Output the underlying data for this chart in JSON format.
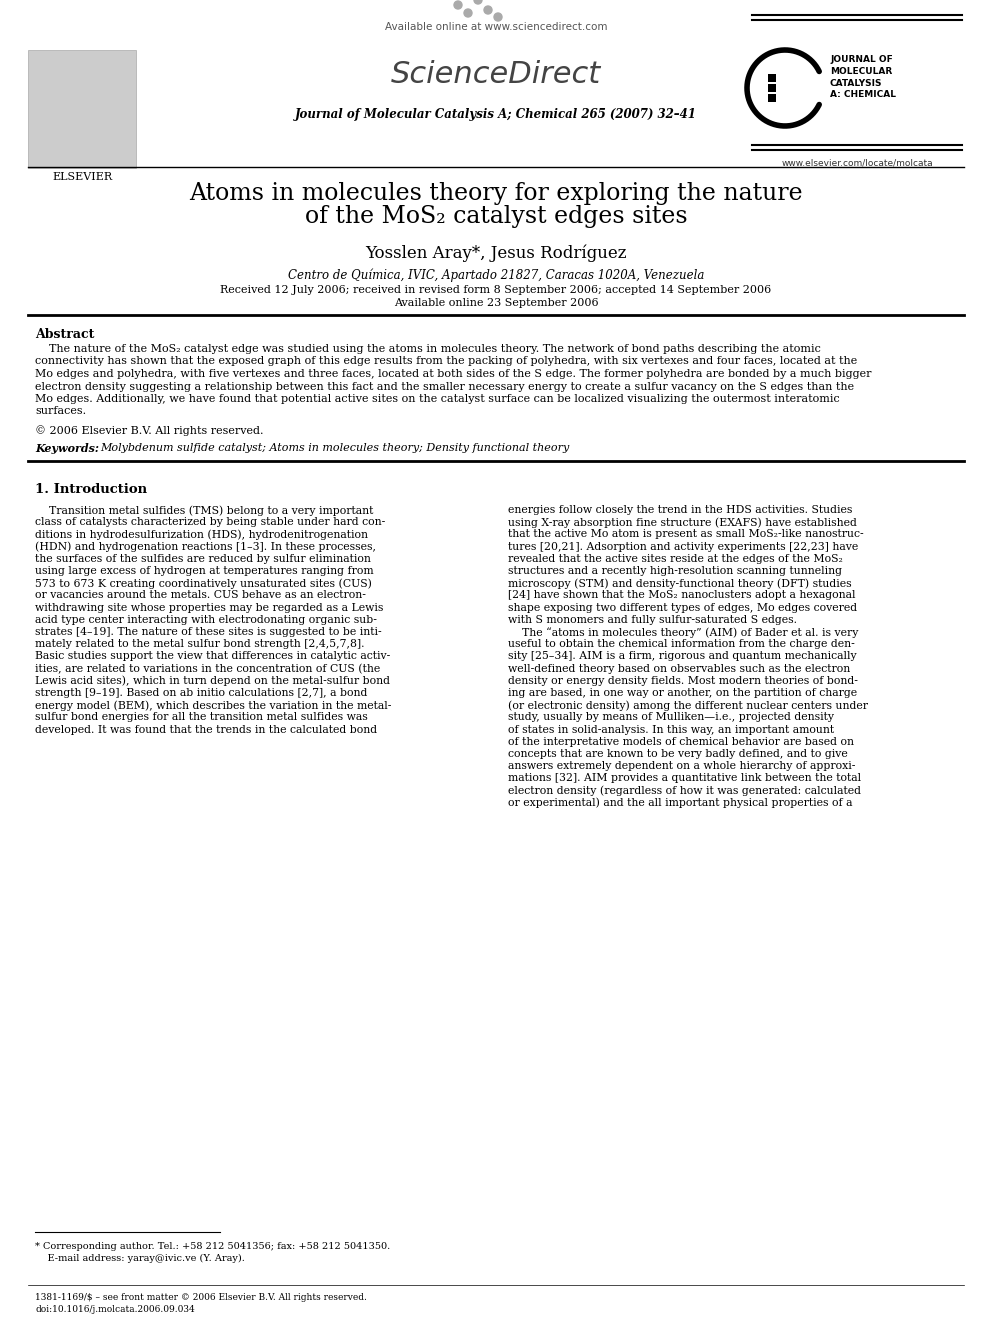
{
  "bg_color": "#ffffff",
  "title_line1": "Atoms in molecules theory for exploring the nature",
  "title_line2_pre": "of the MoS",
  "title_line2_sub": "2",
  "title_line2_post": " catalyst edges sites",
  "authors": "Yosslen Aray*, Jesus Rodríguez",
  "affiliation": "Centro de Química, IVIC, Apartado 21827, Caracas 1020A, Venezuela",
  "received": "Received 12 July 2006; received in revised form 8 September 2006; accepted 14 September 2006",
  "available_online": "Available online 23 September 2006",
  "journal_header": "Journal of Molecular Catalysis A; Chemical 265 (2007) 32–41",
  "available_online_header": "Available online at www.sciencedirect.com",
  "journal_logo_text": "JOURNAL OF\nMOLECULAR\nCATALYSIS\nA: CHEMICAL",
  "elsevier_text": "ELSEVIER",
  "website": "www.elsevier.com/locate/molcata",
  "abstract_title": "Abstract",
  "abstract_lines": [
    "    The nature of the MoS₂ catalyst edge was studied using the atoms in molecules theory. The network of bond paths describing the atomic",
    "connectivity has shown that the exposed graph of this edge results from the packing of polyhedra, with six vertexes and four faces, located at the",
    "Mo edges and polyhedra, with five vertexes and three faces, located at both sides of the S edge. The former polyhedra are bonded by a much bigger",
    "electron density suggesting a relationship between this fact and the smaller necessary energy to create a sulfur vacancy on the S edges than the",
    "Mo edges. Additionally, we have found that potential active sites on the catalyst surface can be localized visualizing the outermost interatomic",
    "surfaces."
  ],
  "copyright": "© 2006 Elsevier B.V. All rights reserved.",
  "keywords_label": "Keywords:  ",
  "keywords": "Molybdenum sulfide catalyst; Atoms in molecules theory; Density functional theory",
  "section1_title": "1. Introduction",
  "section1_col1_lines": [
    "    Transition metal sulfides (TMS) belong to a very important",
    "class of catalysts characterized by being stable under hard con-",
    "ditions in hydrodesulfurization (HDS), hydrodenitrogenation",
    "(HDN) and hydrogenation reactions [1–3]. In these processes,",
    "the surfaces of the sulfides are reduced by sulfur elimination",
    "using large excess of hydrogen at temperatures ranging from",
    "573 to 673 K creating coordinatively unsaturated sites (CUS)",
    "or vacancies around the metals. CUS behave as an electron-",
    "withdrawing site whose properties may be regarded as a Lewis",
    "acid type center interacting with electrodonating organic sub-",
    "strates [4–19]. The nature of these sites is suggested to be inti-",
    "mately related to the metal sulfur bond strength [2,4,5,7,8].",
    "Basic studies support the view that differences in catalytic activ-",
    "ities, are related to variations in the concentration of CUS (the",
    "Lewis acid sites), which in turn depend on the metal-sulfur bond",
    "strength [9–19]. Based on ab initio calculations [2,7], a bond",
    "energy model (BEM), which describes the variation in the metal-",
    "sulfur bond energies for all the transition metal sulfides was",
    "developed. It was found that the trends in the calculated bond"
  ],
  "section1_col2_lines": [
    "energies follow closely the trend in the HDS activities. Studies",
    "using X-ray absorption fine structure (EXAFS) have established",
    "that the active Mo atom is present as small MoS₂-like nanostruc-",
    "tures [20,21]. Adsorption and activity experiments [22,23] have",
    "revealed that the active sites reside at the edges of the MoS₂",
    "structures and a recently high-resolution scanning tunneling",
    "microscopy (STM) and density-functional theory (DFT) studies",
    "[24] have shown that the MoS₂ nanoclusters adopt a hexagonal",
    "shape exposing two different types of edges, Mo edges covered",
    "with S monomers and fully sulfur-saturated S edges.",
    "    The “atoms in molecules theory” (AIM) of Bader et al. is very",
    "useful to obtain the chemical information from the charge den-",
    "sity [25–34]. AIM is a firm, rigorous and quantum mechanically",
    "well-defined theory based on observables such as the electron",
    "density or energy density fields. Most modern theories of bond-",
    "ing are based, in one way or another, on the partition of charge",
    "(or electronic density) among the different nuclear centers under",
    "study, usually by means of Mulliken—i.e., projected density",
    "of states in solid-analysis. In this way, an important amount",
    "of the interpretative models of chemical behavior are based on",
    "concepts that are known to be very badly defined, and to give",
    "answers extremely dependent on a whole hierarchy of approxi-",
    "mations [32]. AIM provides a quantitative link between the total",
    "electron density (regardless of how it was generated: calculated",
    "or experimental) and the all important physical properties of a"
  ],
  "footnote1": "* Corresponding author. Tel.: +58 212 5041356; fax: +58 212 5041350.",
  "footnote2": "    E-mail address: yaray@ivic.ve (Y. Aray).",
  "footnote3": "1381-1169/$ – see front matter © 2006 Elsevier B.V. All rights reserved.",
  "footnote4": "doi:10.1016/j.molcata.2006.09.034"
}
